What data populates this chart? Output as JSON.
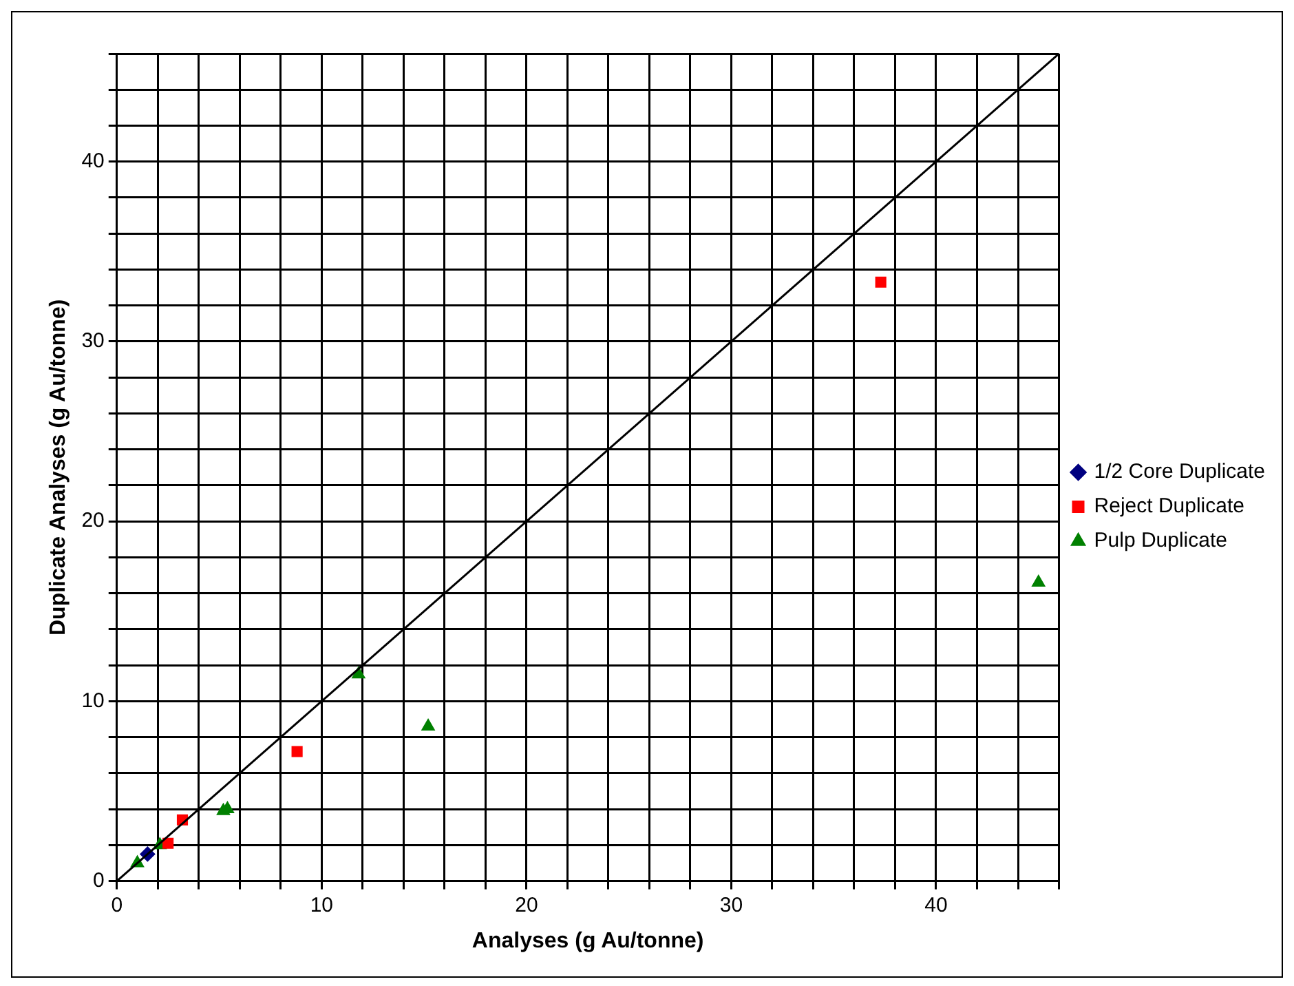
{
  "chart_data": {
    "type": "scatter",
    "xlabel": "Analyses (g Au/tonne)",
    "ylabel": "Duplicate Analyses (g Au/tonne)",
    "xlim": [
      0,
      46
    ],
    "ylim": [
      0,
      46
    ],
    "xticks": [
      0,
      {
        "value": 2,
        "label": null
      },
      {
        "value": 4,
        "label": null
      },
      {
        "value": 6,
        "label": null
      },
      {
        "value": 8,
        "label": null
      },
      10,
      {
        "value": 12,
        "label": null
      },
      {
        "value": 14,
        "label": null
      },
      {
        "value": 16,
        "label": null
      },
      {
        "value": 18,
        "label": null
      },
      20,
      {
        "value": 22,
        "label": null
      },
      {
        "value": 24,
        "label": null
      },
      {
        "value": 26,
        "label": null
      },
      {
        "value": 28,
        "label": null
      },
      30,
      {
        "value": 32,
        "label": null
      },
      {
        "value": 34,
        "label": null
      },
      {
        "value": 36,
        "label": null
      },
      {
        "value": 38,
        "label": null
      },
      40,
      {
        "value": 42,
        "label": null
      },
      {
        "value": 44,
        "label": null
      },
      {
        "value": 46,
        "label": null
      }
    ],
    "yticks": [
      0,
      {
        "value": 2,
        "label": null
      },
      {
        "value": 4,
        "label": null
      },
      {
        "value": 6,
        "label": null
      },
      {
        "value": 8,
        "label": null
      },
      10,
      {
        "value": 12,
        "label": null
      },
      {
        "value": 14,
        "label": null
      },
      {
        "value": 16,
        "label": null
      },
      {
        "value": 18,
        "label": null
      },
      20,
      {
        "value": 22,
        "label": null
      },
      {
        "value": 24,
        "label": null
      },
      {
        "value": 26,
        "label": null
      },
      {
        "value": 28,
        "label": null
      },
      30,
      {
        "value": 32,
        "label": null
      },
      {
        "value": 34,
        "label": null
      },
      {
        "value": 36,
        "label": null
      },
      {
        "value": 38,
        "label": null
      },
      40,
      {
        "value": 42,
        "label": null
      },
      {
        "value": 44,
        "label": null
      },
      {
        "value": 46,
        "label": null
      }
    ],
    "grid": true,
    "legend": "right",
    "series": [
      {
        "type": "line",
        "color": "#000000",
        "marker": "none",
        "line_style": "solid",
        "x": [
          0,
          46
        ],
        "values": [
          0,
          46
        ]
      },
      {
        "name": "1/2 Core Duplicate",
        "color": "#000080",
        "marker": "diamond",
        "x": [
          1.5
        ],
        "values": [
          1.5
        ]
      },
      {
        "name": "Reject Duplicate",
        "color": "#ff0000",
        "marker": "square",
        "x": [
          37.3,
          8.8,
          3.2,
          2.5
        ],
        "values": [
          33.3,
          7.2,
          3.4,
          2.1
        ]
      },
      {
        "name": "Pulp Duplicate",
        "color": "#008000",
        "marker": "triangle",
        "x": [
          1.0,
          2.1,
          5.2,
          5.4,
          11.8,
          15.2,
          45.0
        ],
        "values": [
          1.0,
          2.0,
          3.9,
          4.0,
          11.5,
          8.6,
          16.6
        ]
      }
    ]
  }
}
